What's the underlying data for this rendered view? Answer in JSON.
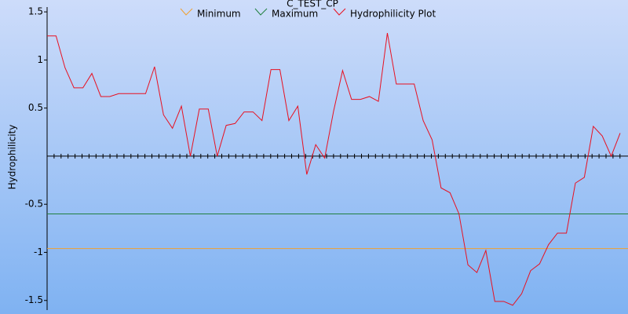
{
  "chart_data": {
    "type": "line",
    "title": "C_TEST_CP",
    "y_label": "Hydrophilicity",
    "x": [
      1,
      2,
      3,
      4,
      5,
      6,
      7,
      8,
      9,
      10,
      11,
      12,
      13,
      14,
      15,
      16,
      17,
      18,
      19,
      20,
      21,
      22,
      23,
      24,
      25,
      26,
      27,
      28,
      29,
      30,
      31,
      32,
      33,
      34,
      35,
      36,
      37,
      38,
      39,
      40,
      41,
      42,
      43,
      44,
      45,
      46,
      47,
      48,
      49,
      50,
      51,
      52,
      53,
      54,
      55,
      56,
      57,
      58,
      59,
      60,
      61,
      62,
      63,
      64,
      65
    ],
    "xlim": [
      1,
      65
    ],
    "ylim": [
      -1.6,
      1.55
    ],
    "yticks": [
      1.5,
      1,
      0.5,
      -0.5,
      -1,
      -1.5
    ],
    "series": [
      {
        "name": "Minimum",
        "color": "#f0a030",
        "value": -0.96
      },
      {
        "name": "Maximum",
        "color": "#208040",
        "value": -0.6
      },
      {
        "name": "Hydrophilicity Plot",
        "color": "#e81020",
        "values": [
          1.25,
          1.25,
          0.92,
          0.71,
          0.71,
          0.86,
          0.62,
          0.62,
          0.65,
          0.65,
          0.65,
          0.65,
          0.93,
          0.43,
          0.29,
          0.52,
          0.0,
          0.49,
          0.49,
          0.0,
          0.32,
          0.34,
          0.46,
          0.46,
          0.37,
          0.9,
          0.9,
          0.37,
          0.52,
          -0.19,
          0.12,
          -0.02,
          0.47,
          0.89,
          0.59,
          0.59,
          0.62,
          0.57,
          1.28,
          0.75,
          0.75,
          0.75,
          0.37,
          0.17,
          -0.33,
          -0.38,
          -0.6,
          -1.13,
          -1.21,
          -0.98,
          -1.51,
          -1.51,
          -1.55,
          -1.43,
          -1.19,
          -1.12,
          -0.92,
          -0.8,
          -0.8,
          -0.28,
          -0.22,
          0.31,
          0.21,
          0.0,
          0.24
        ]
      }
    ]
  }
}
